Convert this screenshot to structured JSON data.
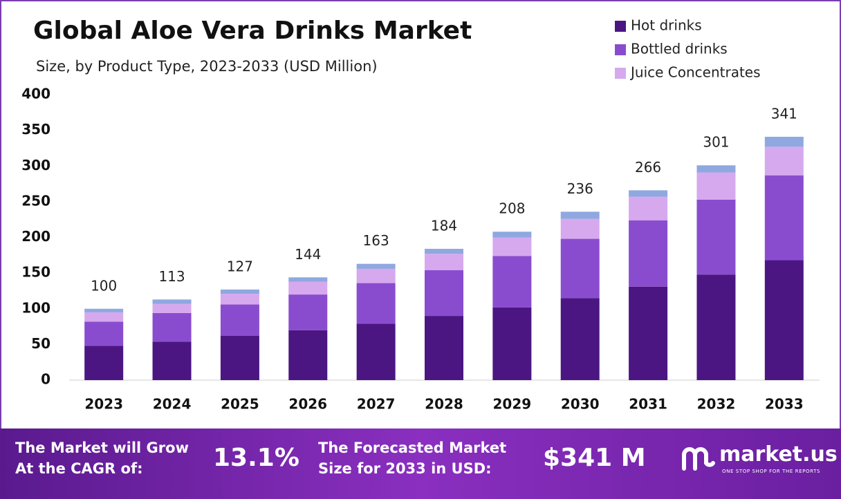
{
  "chart_data": {
    "type": "stacked_bar",
    "title": "Global Aloe Vera Drinks Market",
    "subtitle": "Size, by Product Type, 2023-2033 (USD Million)",
    "categories": [
      "2023",
      "2024",
      "2025",
      "2026",
      "2027",
      "2028",
      "2029",
      "2030",
      "2031",
      "2032",
      "2033"
    ],
    "series": [
      {
        "name": "Hot drinks",
        "color": "#4b1682",
        "values": [
          48,
          54,
          62,
          70,
          79,
          90,
          102,
          115,
          131,
          148,
          168
        ]
      },
      {
        "name": "Bottled drinks",
        "color": "#8a4ccf",
        "values": [
          34,
          40,
          44,
          50,
          57,
          64,
          72,
          83,
          93,
          105,
          119
        ]
      },
      {
        "name": "Juice Concentrates",
        "color": "#d6a9ee",
        "values": [
          13,
          13,
          15,
          18,
          20,
          23,
          26,
          28,
          33,
          38,
          40
        ]
      },
      {
        "color": "#8fa8e0",
        "values": [
          5,
          6,
          6,
          6,
          7,
          7,
          8,
          10,
          9,
          10,
          14
        ]
      }
    ],
    "totals": [
      100,
      113,
      127,
      144,
      163,
      184,
      208,
      236,
      266,
      301,
      341
    ],
    "ylim": [
      0,
      400
    ],
    "yticks": [
      0,
      50,
      100,
      150,
      200,
      250,
      300,
      350,
      400
    ],
    "grid": false,
    "legend": "top-right"
  },
  "footer": {
    "cagr_text": [
      "The Market will Grow",
      "At the CAGR of:"
    ],
    "cagr_value": "13.1%",
    "forecast_text": [
      "The Forecasted Market",
      "Size for 2033 in USD:"
    ],
    "forecast_value": "$341 M",
    "brand": "market.us",
    "tagline": "ONE STOP SHOP FOR THE REPORTS"
  }
}
